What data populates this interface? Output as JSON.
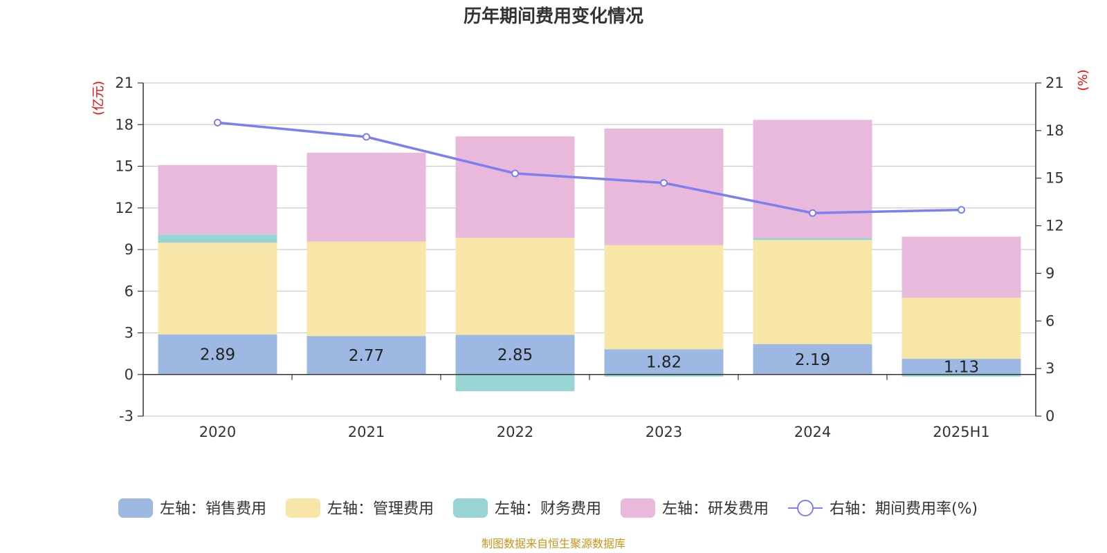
{
  "chart_data": {
    "type": "bar",
    "title": "历年期间费用变化情况",
    "categories": [
      "2020",
      "2021",
      "2022",
      "2023",
      "2024",
      "2025H1"
    ],
    "left_axis": {
      "unit": "(亿元)",
      "ylim": [
        -3,
        21
      ],
      "ticks": [
        "-3",
        "0",
        "3",
        "6",
        "9",
        "12",
        "15",
        "18",
        "21"
      ]
    },
    "right_axis": {
      "unit": "(%)",
      "ylim": [
        0,
        21
      ],
      "ticks": [
        "0",
        "3",
        "6",
        "9",
        "12",
        "15",
        "18",
        "21"
      ]
    },
    "series": [
      {
        "name": "左轴：销售费用",
        "axis": "left",
        "kind": "bar",
        "color": "#9db8e2",
        "values": [
          2.89,
          2.77,
          2.85,
          1.82,
          2.19,
          1.13
        ],
        "labels": [
          "2.89",
          "2.77",
          "2.85",
          "1.82",
          "2.19",
          "1.13"
        ]
      },
      {
        "name": "左轴：管理费用",
        "axis": "left",
        "kind": "bar",
        "color": "#f7e6a7",
        "values": [
          6.6,
          6.8,
          7.0,
          7.5,
          7.5,
          4.4
        ]
      },
      {
        "name": "左轴：财务费用",
        "axis": "left",
        "kind": "bar",
        "color": "#98d4d4",
        "values": [
          0.6,
          0.0,
          -1.2,
          -0.15,
          0.15,
          -0.15
        ]
      },
      {
        "name": "左轴：研发费用",
        "axis": "left",
        "kind": "bar",
        "color": "#e8b9da",
        "values": [
          5.0,
          6.4,
          7.3,
          8.4,
          8.5,
          4.4
        ]
      },
      {
        "name": "右轴：期间费用率(%)",
        "axis": "right",
        "kind": "line",
        "color": "#7b7ff0",
        "values": [
          18.5,
          17.6,
          15.3,
          14.7,
          12.8,
          13.0
        ]
      }
    ],
    "grid": true,
    "legend_position": "bottom"
  },
  "source": "制图数据来自恒生聚源数据库"
}
